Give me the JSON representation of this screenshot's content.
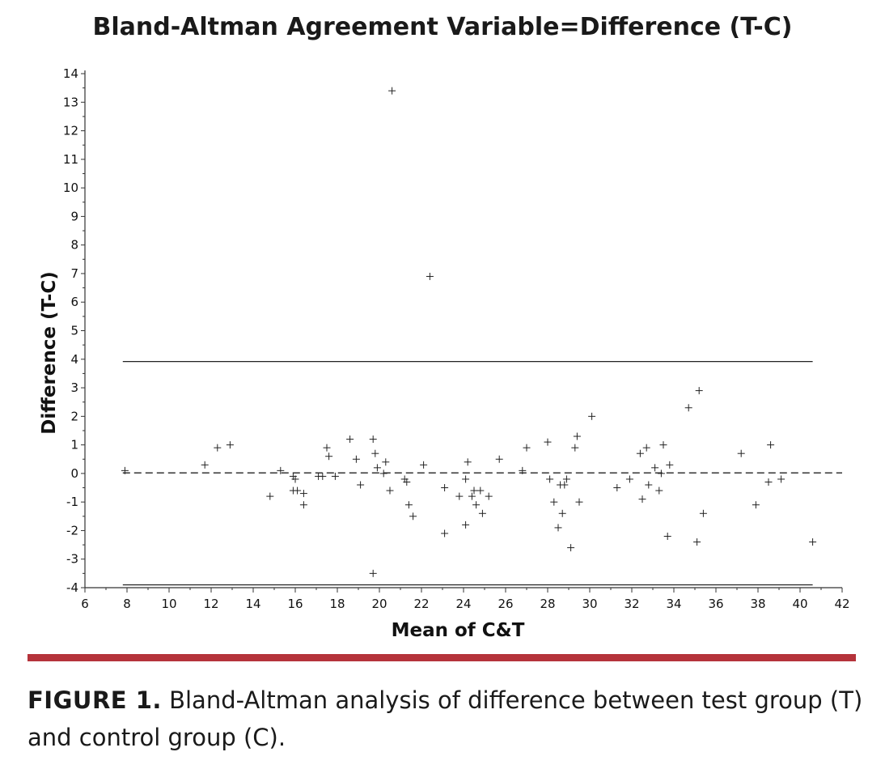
{
  "chart_data": {
    "type": "scatter",
    "title": "Bland-Altman Agreement Variable=Difference (T-C)",
    "xlabel": "Mean of C&T",
    "ylabel": "Difference (T-C)",
    "xlim": [
      6,
      42
    ],
    "ylim": [
      -4,
      14
    ],
    "x_ticks": [
      "6",
      "8",
      "10",
      "12",
      "14",
      "16",
      "18",
      "20",
      "22",
      "24",
      "26",
      "28",
      "30",
      "32",
      "34",
      "36",
      "38",
      "40",
      "42"
    ],
    "y_ticks": [
      "-4",
      "-3",
      "-2",
      "-1",
      "0",
      "1",
      "2",
      "3",
      "4",
      "5",
      "6",
      "7",
      "8",
      "9",
      "10",
      "11",
      "12",
      "13",
      "14"
    ],
    "marker": "+",
    "grid": false,
    "reference_lines": {
      "mean": {
        "y": 0.02,
        "x_range": [
          7.8,
          42
        ],
        "style": "dashed"
      },
      "upper_limit": {
        "y": 3.92,
        "x_range": [
          7.8,
          40.6
        ],
        "style": "solid"
      },
      "lower_limit": {
        "y": -3.9,
        "x_range": [
          7.8,
          40.6
        ],
        "style": "solid"
      }
    },
    "points": [
      {
        "x": 7.9,
        "y": 0.1
      },
      {
        "x": 11.7,
        "y": 0.3
      },
      {
        "x": 12.3,
        "y": 0.9
      },
      {
        "x": 12.9,
        "y": 1.0
      },
      {
        "x": 14.8,
        "y": -0.8
      },
      {
        "x": 15.3,
        "y": 0.1
      },
      {
        "x": 15.9,
        "y": -0.1
      },
      {
        "x": 16.0,
        "y": -0.2
      },
      {
        "x": 15.9,
        "y": -0.6
      },
      {
        "x": 16.1,
        "y": -0.6
      },
      {
        "x": 16.4,
        "y": -0.7
      },
      {
        "x": 16.4,
        "y": -1.1
      },
      {
        "x": 17.1,
        "y": -0.1
      },
      {
        "x": 17.3,
        "y": -0.1
      },
      {
        "x": 17.5,
        "y": 0.9
      },
      {
        "x": 17.6,
        "y": 0.6
      },
      {
        "x": 17.9,
        "y": -0.1
      },
      {
        "x": 18.6,
        "y": 1.2
      },
      {
        "x": 18.9,
        "y": 0.5
      },
      {
        "x": 19.1,
        "y": -0.4
      },
      {
        "x": 19.7,
        "y": 1.2
      },
      {
        "x": 19.8,
        "y": 0.7
      },
      {
        "x": 19.9,
        "y": 0.2
      },
      {
        "x": 20.2,
        "y": 0.0
      },
      {
        "x": 20.3,
        "y": 0.4
      },
      {
        "x": 20.5,
        "y": -0.6
      },
      {
        "x": 19.7,
        "y": -3.5
      },
      {
        "x": 20.6,
        "y": 13.4
      },
      {
        "x": 21.2,
        "y": -0.2
      },
      {
        "x": 21.3,
        "y": -0.3
      },
      {
        "x": 21.4,
        "y": -1.1
      },
      {
        "x": 21.6,
        "y": -1.5
      },
      {
        "x": 22.1,
        "y": 0.3
      },
      {
        "x": 22.4,
        "y": 6.9
      },
      {
        "x": 23.1,
        "y": -0.5
      },
      {
        "x": 23.1,
        "y": -2.1
      },
      {
        "x": 23.8,
        "y": -0.8
      },
      {
        "x": 24.1,
        "y": -0.2
      },
      {
        "x": 24.1,
        "y": -1.8
      },
      {
        "x": 24.2,
        "y": 0.4
      },
      {
        "x": 24.4,
        "y": -0.8
      },
      {
        "x": 24.5,
        "y": -0.6
      },
      {
        "x": 24.6,
        "y": -1.1
      },
      {
        "x": 24.8,
        "y": -0.6
      },
      {
        "x": 24.9,
        "y": -1.4
      },
      {
        "x": 25.2,
        "y": -0.8
      },
      {
        "x": 25.7,
        "y": 0.5
      },
      {
        "x": 26.8,
        "y": 0.1
      },
      {
        "x": 27.0,
        "y": 0.9
      },
      {
        "x": 28.0,
        "y": 1.1
      },
      {
        "x": 28.1,
        "y": -0.2
      },
      {
        "x": 28.3,
        "y": -1.0
      },
      {
        "x": 28.5,
        "y": -1.9
      },
      {
        "x": 28.6,
        "y": -0.4
      },
      {
        "x": 28.7,
        "y": -1.4
      },
      {
        "x": 28.8,
        "y": -0.4
      },
      {
        "x": 28.9,
        "y": -0.2
      },
      {
        "x": 29.1,
        "y": -2.6
      },
      {
        "x": 29.3,
        "y": 0.9
      },
      {
        "x": 29.4,
        "y": 1.3
      },
      {
        "x": 29.5,
        "y": -1.0
      },
      {
        "x": 30.1,
        "y": 2.0
      },
      {
        "x": 31.3,
        "y": -0.5
      },
      {
        "x": 31.9,
        "y": -0.2
      },
      {
        "x": 32.4,
        "y": 0.7
      },
      {
        "x": 32.5,
        "y": -0.9
      },
      {
        "x": 32.7,
        "y": 0.9
      },
      {
        "x": 32.8,
        "y": -0.4
      },
      {
        "x": 33.1,
        "y": 0.2
      },
      {
        "x": 33.3,
        "y": -0.6
      },
      {
        "x": 33.4,
        "y": 0.0
      },
      {
        "x": 33.5,
        "y": 1.0
      },
      {
        "x": 33.7,
        "y": -2.2
      },
      {
        "x": 33.8,
        "y": 0.3
      },
      {
        "x": 34.7,
        "y": 2.3
      },
      {
        "x": 35.2,
        "y": 2.9
      },
      {
        "x": 35.1,
        "y": -2.4
      },
      {
        "x": 35.4,
        "y": -1.4
      },
      {
        "x": 37.2,
        "y": 0.7
      },
      {
        "x": 37.9,
        "y": -1.1
      },
      {
        "x": 38.5,
        "y": -0.3
      },
      {
        "x": 38.6,
        "y": 1.0
      },
      {
        "x": 39.1,
        "y": -0.2
      },
      {
        "x": 40.6,
        "y": -2.4
      }
    ]
  },
  "caption": {
    "label": "FIGURE 1.",
    "text": " Bland-Altman analysis of difference between test group (T) and control group (C)."
  },
  "colors": {
    "divider": "#b5333b",
    "marks": "#333333"
  }
}
